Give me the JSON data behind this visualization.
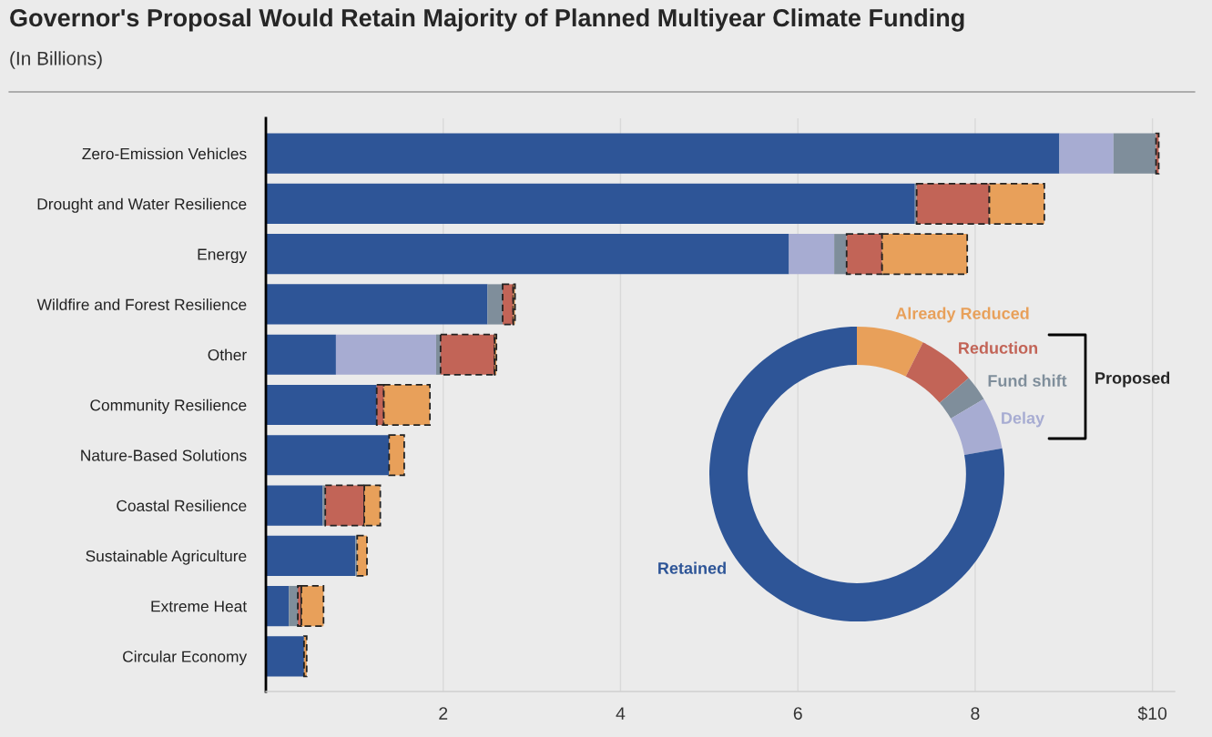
{
  "chart_data": [
    {
      "type": "bar",
      "orientation": "horizontal",
      "stacked": true,
      "title": "Governor's Proposal Would Retain Majority of Planned Multiyear Climate Funding",
      "subtitle": "(In Billions)",
      "categories": [
        "Zero-Emission Vehicles",
        "Drought and Water Resilience",
        "Energy",
        "Wildfire and Forest Resilience",
        "Other",
        "Community Resilience",
        "Nature-Based Solutions",
        "Coastal Resilience",
        "Sustainable Agriculture",
        "Extreme Heat",
        "Circular Economy"
      ],
      "series": [
        {
          "color": "#2e5597",
          "values": [
            8.95,
            7.32,
            5.9,
            2.5,
            0.79,
            1.25,
            1.39,
            0.64,
            1.01,
            0.26,
            0.43
          ]
        },
        {
          "color": "#a7acd2",
          "values": [
            0.61,
            0,
            0.51,
            0,
            1.13,
            0,
            0,
            0,
            0,
            0,
            0
          ]
        },
        {
          "color": "#7f8e9b",
          "values": [
            0.48,
            0.02,
            0.14,
            0.17,
            0.05,
            0,
            0,
            0.03,
            0.02,
            0.1,
            0
          ]
        },
        {
          "color": "#c26457",
          "line_style": "dashed",
          "values": [
            0.03,
            0.82,
            0.4,
            0.12,
            0.61,
            0.08,
            0,
            0.44,
            0,
            0.04,
            0
          ]
        },
        {
          "color": "#e8a05a",
          "line_style": "dashed",
          "values": [
            0,
            0.62,
            0.96,
            0.02,
            0.02,
            0.52,
            0.17,
            0.18,
            0.11,
            0.25,
            0.03
          ]
        }
      ],
      "xlim": [
        0,
        10.25
      ],
      "xticks": [
        2,
        4,
        6,
        8,
        {
          "value": 10,
          "label": "$10"
        }
      ],
      "grid": "x"
    },
    {
      "type": "donut",
      "categories": [
        "Already Reduced",
        "Reduction",
        "Fund shift",
        "Delay",
        "Retained"
      ],
      "values": [
        7.4,
        6.3,
        2.8,
        5.7,
        77.8
      ],
      "colors": [
        "#e8a05a",
        "#c26457",
        "#7f8e9b",
        "#a7acd2",
        "#2e5597"
      ],
      "annotations": [
        "Proposed"
      ]
    }
  ]
}
